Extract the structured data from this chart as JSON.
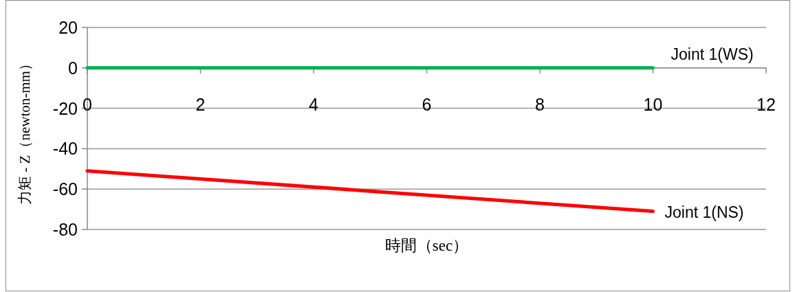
{
  "chart_data": {
    "type": "line",
    "xlabel": "時間（sec）",
    "ylabel": "力矩 - Z（newton-mm）",
    "xlim": [
      0,
      12
    ],
    "xticks": [
      0,
      2,
      4,
      6,
      8,
      10,
      12
    ],
    "ylim": [
      -80,
      20
    ],
    "yticks": [
      -80,
      -60,
      -40,
      -20,
      0,
      20
    ],
    "grid": "y",
    "series": [
      {
        "name": "Joint 1(WS)",
        "color": "#00b050",
        "x": [
          0,
          10
        ],
        "values": [
          0,
          0
        ]
      },
      {
        "name": "Joint 1(NS)",
        "color": "#ff0000",
        "x": [
          0,
          5,
          10
        ],
        "values": [
          -51,
          -61,
          -71
        ]
      }
    ]
  }
}
